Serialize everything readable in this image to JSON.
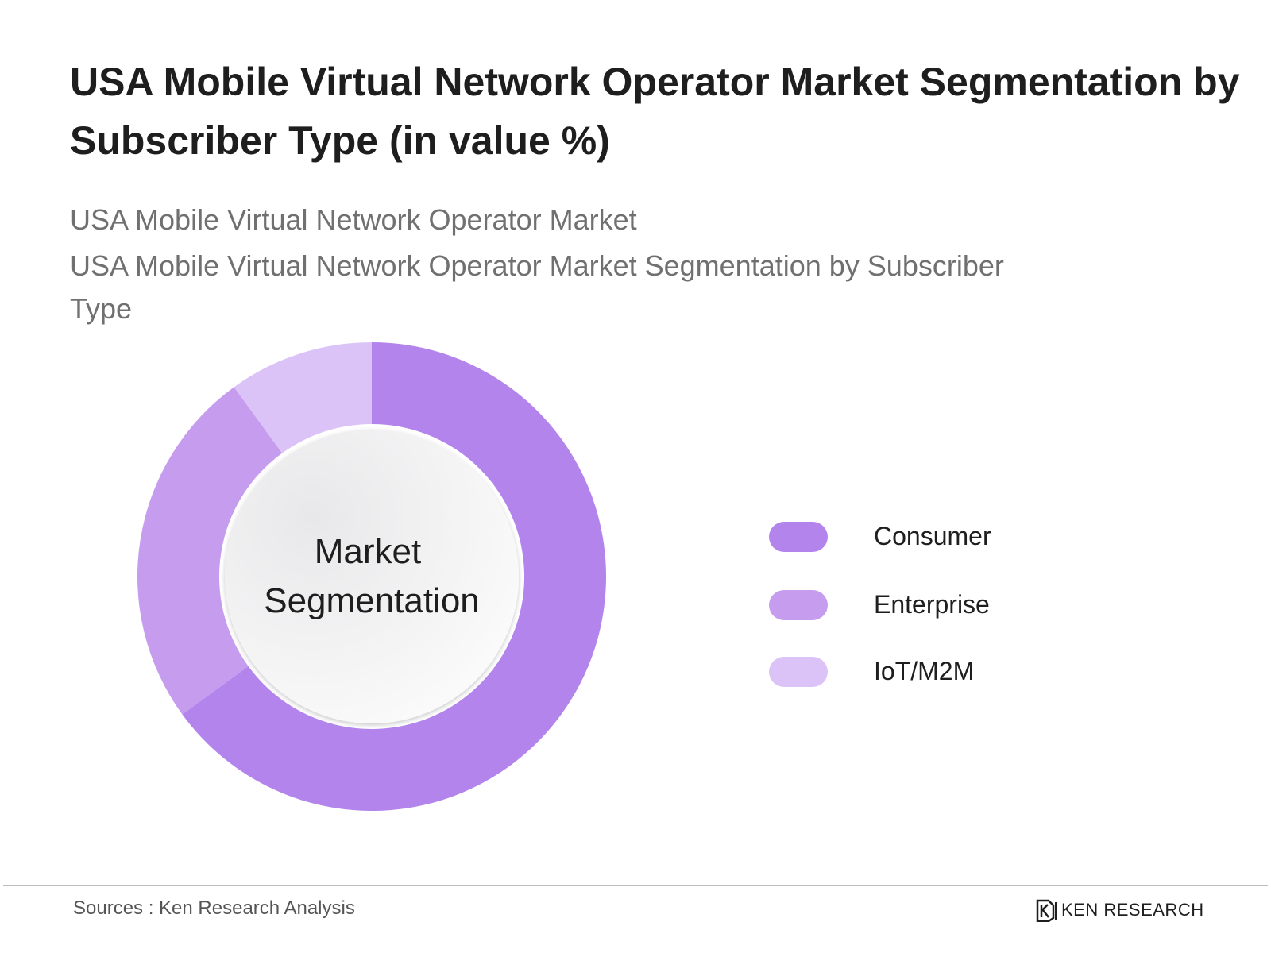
{
  "title": "USA Mobile Virtual Network Operator Market Segmentation by Subscriber Type (in value %)",
  "subtitle_1": "USA Mobile Virtual Network Operator Market",
  "subtitle_2": "USA Mobile Virtual Network Operator Market Segmentation by Subscriber Type",
  "center_label_1": "Market",
  "center_label_2": "Segmentation",
  "sources": "Sources : Ken Research Analysis",
  "logo": {
    "text": "KEN RESEARCH",
    "icon": "ken-research-logo-icon"
  },
  "chart_data": {
    "type": "pie",
    "variant": "donut",
    "categories": [
      "Consumer",
      "Enterprise",
      "IoT/M2M"
    ],
    "values": [
      65,
      25,
      10
    ],
    "unit": "%",
    "colors": [
      "#b385ec",
      "#c69cef",
      "#dcc3f7"
    ],
    "legend_position": "right"
  }
}
